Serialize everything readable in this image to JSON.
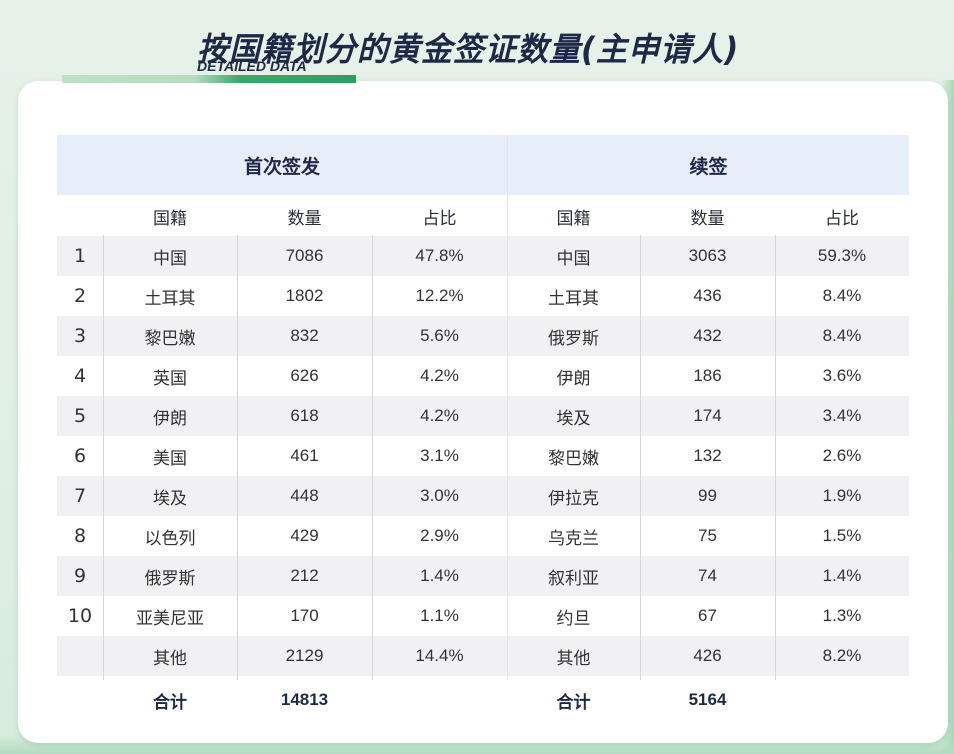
{
  "header": {
    "title": "按国籍划分的黄金签证数量(主申请人)",
    "subtitle": "DETAILED DATA"
  },
  "colors": {
    "title": "#1e2847",
    "accent_green": "#2f9e60",
    "group_header_bg": "#e8edfa",
    "row_alt_bg": "#f1f1f3"
  },
  "table": {
    "groups": {
      "first_issue": "首次签发",
      "renewal": "续签"
    },
    "columns": {
      "nationality": "国籍",
      "count": "数量",
      "share": "占比"
    },
    "rows": [
      {
        "rank": "1",
        "first": {
          "nationality": "中国",
          "count": "7086",
          "share": "47.8%"
        },
        "renewal": {
          "nationality": "中国",
          "count": "3063",
          "share": "59.3%"
        }
      },
      {
        "rank": "2",
        "first": {
          "nationality": "土耳其",
          "count": "1802",
          "share": "12.2%"
        },
        "renewal": {
          "nationality": "土耳其",
          "count": "436",
          "share": "8.4%"
        }
      },
      {
        "rank": "3",
        "first": {
          "nationality": "黎巴嫩",
          "count": "832",
          "share": "5.6%"
        },
        "renewal": {
          "nationality": "俄罗斯",
          "count": "432",
          "share": "8.4%"
        }
      },
      {
        "rank": "4",
        "first": {
          "nationality": "英国",
          "count": "626",
          "share": "4.2%"
        },
        "renewal": {
          "nationality": "伊朗",
          "count": "186",
          "share": "3.6%"
        }
      },
      {
        "rank": "5",
        "first": {
          "nationality": "伊朗",
          "count": "618",
          "share": "4.2%"
        },
        "renewal": {
          "nationality": "埃及",
          "count": "174",
          "share": "3.4%"
        }
      },
      {
        "rank": "6",
        "first": {
          "nationality": "美国",
          "count": "461",
          "share": "3.1%"
        },
        "renewal": {
          "nationality": "黎巴嫩",
          "count": "132",
          "share": "2.6%"
        }
      },
      {
        "rank": "7",
        "first": {
          "nationality": "埃及",
          "count": "448",
          "share": "3.0%"
        },
        "renewal": {
          "nationality": "伊拉克",
          "count": "99",
          "share": "1.9%"
        }
      },
      {
        "rank": "8",
        "first": {
          "nationality": "以色列",
          "count": "429",
          "share": "2.9%"
        },
        "renewal": {
          "nationality": "乌克兰",
          "count": "75",
          "share": "1.5%"
        }
      },
      {
        "rank": "9",
        "first": {
          "nationality": "俄罗斯",
          "count": "212",
          "share": "1.4%"
        },
        "renewal": {
          "nationality": "叙利亚",
          "count": "74",
          "share": "1.4%"
        }
      },
      {
        "rank": "10",
        "first": {
          "nationality": "亚美尼亚",
          "count": "170",
          "share": "1.1%"
        },
        "renewal": {
          "nationality": "约旦",
          "count": "67",
          "share": "1.3%"
        }
      },
      {
        "rank": "",
        "first": {
          "nationality": "其他",
          "count": "2129",
          "share": "14.4%"
        },
        "renewal": {
          "nationality": "其他",
          "count": "426",
          "share": "8.2%"
        }
      }
    ],
    "totals": {
      "label": "合计",
      "first_total": "14813",
      "renewal_total": "5164"
    }
  }
}
